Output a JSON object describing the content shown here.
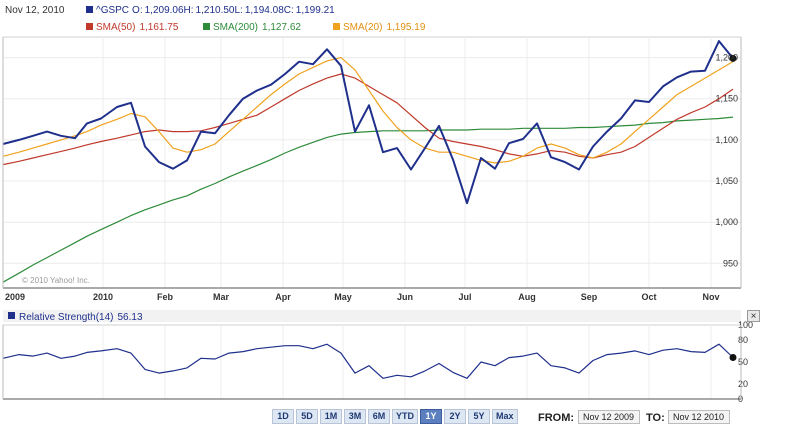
{
  "header": {
    "date": "Nov 12, 2010",
    "symbol": "^GSPC",
    "open_label": "O:",
    "open": "1,209.06",
    "high_label": "H:",
    "high": "1,210.50",
    "low_label": "L:",
    "low": "1,194.08",
    "close_label": "C:",
    "close": "1,199.21"
  },
  "legend": [
    {
      "label": "SMA(50)",
      "value": "1,161.75",
      "color": "#c0392b"
    },
    {
      "label": "SMA(200)",
      "value": "1,127.62",
      "color": "#2e8b3a"
    },
    {
      "label": "SMA(20)",
      "value": "1,195.19",
      "color": "#f0a21e"
    }
  ],
  "copyright": "© 2010 Yahoo! Inc.",
  "x_axis_labels": [
    "2009",
    "2010",
    "Feb",
    "Mar",
    "Apr",
    "May",
    "Jun",
    "Jul",
    "Aug",
    "Sep",
    "Oct",
    "Nov"
  ],
  "y_axis_labels": [
    "1,200",
    "1,150",
    "1,100",
    "1,050",
    "1,000",
    "950"
  ],
  "rsi_panel": {
    "label": "Relative Strength(14)",
    "value": "56.13",
    "axis_labels": [
      "100",
      "80",
      "50",
      "20",
      "0"
    ],
    "close_glyph": "×"
  },
  "range_buttons": [
    "1D",
    "5D",
    "1M",
    "3M",
    "6M",
    "YTD",
    "1Y",
    "2Y",
    "5Y",
    "Max"
  ],
  "active_range": "1Y",
  "from_label": "FROM:",
  "from_date": "Nov 12 2009",
  "to_label": "TO:",
  "to_date": "Nov 12 2010",
  "colors": {
    "price": "#1f2f8c",
    "sma50": "#c0392b",
    "sma200": "#2e8b3a",
    "sma20": "#f0a21e",
    "rsi": "#1f2f8c",
    "active_button": "#5b7fbf"
  },
  "chart_data": [
    {
      "type": "line",
      "title": "^GSPC",
      "ylim": [
        920,
        1225
      ],
      "x": [
        "2009-11-12",
        "2009-11-20",
        "2009-11-27",
        "2009-12-04",
        "2009-12-11",
        "2009-12-18",
        "2009-12-24",
        "2009-12-31",
        "2010-01-08",
        "2010-01-15",
        "2010-01-22",
        "2010-01-29",
        "2010-02-05",
        "2010-02-12",
        "2010-02-19",
        "2010-02-26",
        "2010-03-05",
        "2010-03-12",
        "2010-03-19",
        "2010-03-26",
        "2010-04-02",
        "2010-04-09",
        "2010-04-16",
        "2010-04-23",
        "2010-04-30",
        "2010-05-07",
        "2010-05-14",
        "2010-05-21",
        "2010-05-28",
        "2010-06-04",
        "2010-06-11",
        "2010-06-18",
        "2010-06-25",
        "2010-07-02",
        "2010-07-09",
        "2010-07-16",
        "2010-07-23",
        "2010-07-30",
        "2010-08-06",
        "2010-08-13",
        "2010-08-20",
        "2010-08-27",
        "2010-09-03",
        "2010-09-10",
        "2010-09-17",
        "2010-09-24",
        "2010-10-01",
        "2010-10-08",
        "2010-10-15",
        "2010-10-22",
        "2010-10-29",
        "2010-11-05",
        "2010-11-12"
      ],
      "series": [
        {
          "name": "^GSPC",
          "values": [
            1095,
            1100,
            1105,
            1110,
            1105,
            1102,
            1120,
            1126,
            1140,
            1145,
            1092,
            1073,
            1065,
            1075,
            1110,
            1108,
            1130,
            1150,
            1160,
            1167,
            1180,
            1195,
            1192,
            1210,
            1190,
            1110,
            1142,
            1085,
            1090,
            1064,
            1090,
            1117,
            1076,
            1023,
            1078,
            1065,
            1096,
            1101,
            1120,
            1079,
            1073,
            1064,
            1092,
            1110,
            1126,
            1148,
            1146,
            1165,
            1176,
            1183,
            1184,
            1220,
            1199
          ]
        },
        {
          "name": "SMA(50)",
          "values": [
            1070,
            1074,
            1078,
            1082,
            1086,
            1090,
            1094,
            1098,
            1102,
            1106,
            1110,
            1112,
            1110,
            1110,
            1111,
            1115,
            1120,
            1125,
            1130,
            1140,
            1150,
            1160,
            1168,
            1175,
            1180,
            1175,
            1165,
            1155,
            1145,
            1130,
            1115,
            1102,
            1098,
            1095,
            1092,
            1088,
            1083,
            1080,
            1083,
            1087,
            1085,
            1080,
            1078,
            1082,
            1085,
            1092,
            1103,
            1114,
            1125,
            1133,
            1140,
            1150,
            1161.75
          ]
        },
        {
          "name": "SMA(200)",
          "values": [
            927,
            938,
            948,
            957,
            966,
            975,
            983,
            991,
            1000,
            1008,
            1015,
            1021,
            1027,
            1032,
            1040,
            1047,
            1055,
            1062,
            1069,
            1076,
            1084,
            1091,
            1097,
            1103,
            1107,
            1109,
            1110,
            1111,
            1111,
            1111,
            1111,
            1112,
            1112,
            1112,
            1113,
            1113,
            1113,
            1114,
            1114,
            1114,
            1114,
            1115,
            1115,
            1116,
            1117,
            1118,
            1120,
            1121,
            1123,
            1124,
            1125,
            1126,
            1127.62
          ]
        },
        {
          "name": "SMA(20)",
          "values": [
            1080,
            1085,
            1090,
            1095,
            1100,
            1105,
            1110,
            1118,
            1125,
            1132,
            1128,
            1110,
            1090,
            1085,
            1088,
            1095,
            1110,
            1125,
            1140,
            1155,
            1168,
            1180,
            1188,
            1196,
            1200,
            1185,
            1160,
            1135,
            1115,
            1100,
            1090,
            1085,
            1085,
            1080,
            1075,
            1072,
            1074,
            1080,
            1090,
            1095,
            1090,
            1082,
            1078,
            1085,
            1095,
            1110,
            1125,
            1140,
            1155,
            1165,
            1175,
            1185,
            1195.19
          ]
        }
      ]
    },
    {
      "type": "line",
      "title": "Relative Strength(14)",
      "ylim": [
        0,
        100
      ],
      "x": [
        "2009-11-12",
        "2009-11-20",
        "2009-11-27",
        "2009-12-04",
        "2009-12-11",
        "2009-12-18",
        "2009-12-24",
        "2009-12-31",
        "2010-01-08",
        "2010-01-15",
        "2010-01-22",
        "2010-01-29",
        "2010-02-05",
        "2010-02-12",
        "2010-02-19",
        "2010-02-26",
        "2010-03-05",
        "2010-03-12",
        "2010-03-19",
        "2010-03-26",
        "2010-04-02",
        "2010-04-09",
        "2010-04-16",
        "2010-04-23",
        "2010-04-30",
        "2010-05-07",
        "2010-05-14",
        "2010-05-21",
        "2010-05-28",
        "2010-06-04",
        "2010-06-11",
        "2010-06-18",
        "2010-06-25",
        "2010-07-02",
        "2010-07-09",
        "2010-07-16",
        "2010-07-23",
        "2010-07-30",
        "2010-08-06",
        "2010-08-13",
        "2010-08-20",
        "2010-08-27",
        "2010-09-03",
        "2010-09-10",
        "2010-09-17",
        "2010-09-24",
        "2010-10-01",
        "2010-10-08",
        "2010-10-15",
        "2010-10-22",
        "2010-10-29",
        "2010-11-05",
        "2010-11-12"
      ],
      "series": [
        {
          "name": "Relative Strength(14)",
          "values": [
            55,
            60,
            58,
            62,
            55,
            58,
            63,
            65,
            68,
            62,
            40,
            35,
            38,
            42,
            55,
            54,
            62,
            64,
            68,
            70,
            72,
            72,
            68,
            74,
            62,
            35,
            45,
            28,
            32,
            30,
            38,
            48,
            36,
            28,
            50,
            45,
            56,
            58,
            62,
            45,
            42,
            35,
            52,
            60,
            62,
            65,
            60,
            66,
            68,
            64,
            63,
            74,
            56.13
          ]
        }
      ]
    }
  ]
}
